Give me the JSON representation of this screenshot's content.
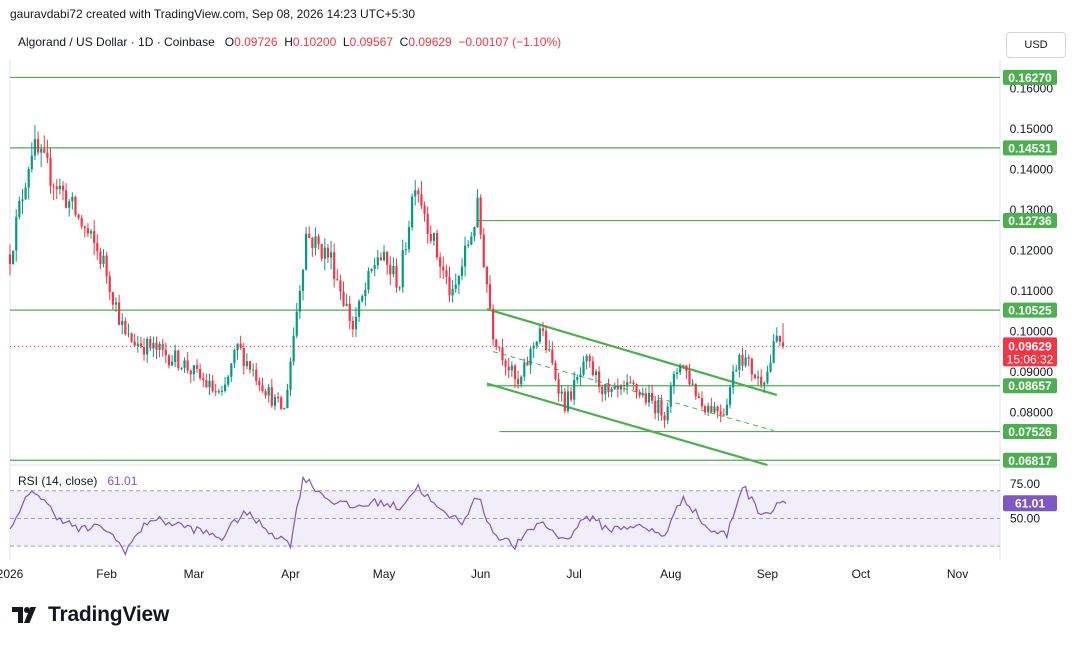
{
  "header": {
    "credit": "gauravdabi72 created with TradingView.com, Sep 08, 2026 14:23 UTC+5:30",
    "symbol": "Algorand / US Dollar · 1D · Coinbase",
    "o_label": "O",
    "o_value": "0.09726",
    "h_label": "H",
    "h_value": "0.10200",
    "l_label": "L",
    "l_value": "0.09567",
    "c_label": "C",
    "c_value": "0.09629",
    "change": "−0.00107 (−1.10%)"
  },
  "currency_button": "USD",
  "brand": "TradingView",
  "colors": {
    "up": "#089981",
    "down": "#f23645",
    "level": "#4caf50",
    "rsi": "#7e57c2",
    "rsi_band": "#ede7f6"
  },
  "chart_data": {
    "type": "candlestick",
    "title": "Algorand / US Dollar · 1D · Coinbase",
    "y_ticks": [
      "0.16000",
      "0.15000",
      "0.14000",
      "0.13000",
      "0.12000",
      "0.11000",
      "0.10000",
      "0.09000",
      "0.08000"
    ],
    "x_ticks": [
      {
        "label": "2026",
        "day": 0
      },
      {
        "label": "Feb",
        "day": 31
      },
      {
        "label": "Mar",
        "day": 59
      },
      {
        "label": "Apr",
        "day": 90
      },
      {
        "label": "May",
        "day": 120
      },
      {
        "label": "Jun",
        "day": 151
      },
      {
        "label": "Jul",
        "day": 181
      },
      {
        "label": "Aug",
        "day": 212
      },
      {
        "label": "Sep",
        "day": 243
      },
      {
        "label": "Oct",
        "day": 273
      },
      {
        "label": "Nov",
        "day": 304
      }
    ],
    "ylim": [
      0.067,
      0.167
    ],
    "levels": [
      {
        "label": "0.16270",
        "value": 0.1627,
        "start_day": 0
      },
      {
        "label": "0.14531",
        "value": 0.14531,
        "start_day": 0
      },
      {
        "label": "0.12736",
        "value": 0.12736,
        "start_day": 150
      },
      {
        "label": "0.10525",
        "value": 0.10525,
        "start_day": 0
      },
      {
        "label": "0.08657",
        "value": 0.08657,
        "start_day": 153
      },
      {
        "label": "0.07526",
        "value": 0.07526,
        "start_day": 157
      },
      {
        "label": "0.06817",
        "value": 0.06817,
        "start_day": 0
      }
    ],
    "channel": {
      "upper": [
        {
          "day": 153,
          "value": 0.1055
        },
        {
          "day": 246,
          "value": 0.0843
        }
      ],
      "lower": [
        {
          "day": 153,
          "value": 0.0871
        },
        {
          "day": 243,
          "value": 0.067
        }
      ],
      "mid": [
        {
          "day": 155,
          "value": 0.095
        },
        {
          "day": 245,
          "value": 0.0755
        }
      ]
    },
    "last_price": {
      "label": "0.09629",
      "value": 0.09629,
      "countdown": "15:06:32"
    },
    "key_points": [
      {
        "day": 0,
        "value": 0.119
      },
      {
        "day": 7,
        "value": 0.1455
      },
      {
        "day": 18,
        "value": 0.133
      },
      {
        "day": 30,
        "value": 0.117
      },
      {
        "day": 37,
        "value": 0.0985
      },
      {
        "day": 48,
        "value": 0.095
      },
      {
        "day": 55,
        "value": 0.0925
      },
      {
        "day": 68,
        "value": 0.0835
      },
      {
        "day": 73,
        "value": 0.096
      },
      {
        "day": 85,
        "value": 0.0825
      },
      {
        "day": 88,
        "value": 0.0805
      },
      {
        "day": 95,
        "value": 0.124
      },
      {
        "day": 103,
        "value": 0.118
      },
      {
        "day": 110,
        "value": 0.101
      },
      {
        "day": 118,
        "value": 0.119
      },
      {
        "day": 125,
        "value": 0.112
      },
      {
        "day": 130,
        "value": 0.138
      },
      {
        "day": 137,
        "value": 0.119
      },
      {
        "day": 142,
        "value": 0.108
      },
      {
        "day": 150,
        "value": 0.13
      },
      {
        "day": 155,
        "value": 0.1
      },
      {
        "day": 163,
        "value": 0.086
      },
      {
        "day": 170,
        "value": 0.101
      },
      {
        "day": 178,
        "value": 0.082
      },
      {
        "day": 185,
        "value": 0.092
      },
      {
        "day": 192,
        "value": 0.084
      },
      {
        "day": 200,
        "value": 0.086
      },
      {
        "day": 210,
        "value": 0.08
      },
      {
        "day": 215,
        "value": 0.093
      },
      {
        "day": 222,
        "value": 0.082
      },
      {
        "day": 229,
        "value": 0.0805
      },
      {
        "day": 234,
        "value": 0.095
      },
      {
        "day": 240,
        "value": 0.088
      },
      {
        "day": 243,
        "value": 0.09
      },
      {
        "day": 246,
        "value": 0.0985
      },
      {
        "day": 248,
        "value": 0.0963
      }
    ],
    "last_candle": {
      "open": 0.09726,
      "high": 0.102,
      "low": 0.09567,
      "close": 0.09629
    },
    "rsi": {
      "legend": "RSI (14, close)",
      "value_label": "61.01",
      "value": 61.01,
      "ticks": [
        "75.00",
        "50.00"
      ],
      "band": [
        30,
        70
      ],
      "ylim": [
        20,
        85
      ],
      "key_points": [
        {
          "day": 0,
          "value": 40
        },
        {
          "day": 7,
          "value": 72
        },
        {
          "day": 15,
          "value": 52
        },
        {
          "day": 22,
          "value": 42
        },
        {
          "day": 30,
          "value": 44
        },
        {
          "day": 37,
          "value": 27
        },
        {
          "day": 45,
          "value": 50
        },
        {
          "day": 55,
          "value": 45
        },
        {
          "day": 68,
          "value": 36
        },
        {
          "day": 75,
          "value": 55
        },
        {
          "day": 85,
          "value": 38
        },
        {
          "day": 90,
          "value": 32
        },
        {
          "day": 94,
          "value": 80
        },
        {
          "day": 102,
          "value": 64
        },
        {
          "day": 110,
          "value": 58
        },
        {
          "day": 118,
          "value": 62
        },
        {
          "day": 125,
          "value": 58
        },
        {
          "day": 131,
          "value": 73
        },
        {
          "day": 138,
          "value": 55
        },
        {
          "day": 145,
          "value": 48
        },
        {
          "day": 150,
          "value": 66
        },
        {
          "day": 155,
          "value": 40
        },
        {
          "day": 162,
          "value": 30
        },
        {
          "day": 170,
          "value": 48
        },
        {
          "day": 178,
          "value": 34
        },
        {
          "day": 185,
          "value": 52
        },
        {
          "day": 192,
          "value": 42
        },
        {
          "day": 200,
          "value": 45
        },
        {
          "day": 210,
          "value": 38
        },
        {
          "day": 216,
          "value": 66
        },
        {
          "day": 224,
          "value": 42
        },
        {
          "day": 230,
          "value": 38
        },
        {
          "day": 235,
          "value": 74
        },
        {
          "day": 240,
          "value": 56
        },
        {
          "day": 244,
          "value": 54
        },
        {
          "day": 247,
          "value": 64
        },
        {
          "day": 249,
          "value": 61
        }
      ]
    }
  }
}
